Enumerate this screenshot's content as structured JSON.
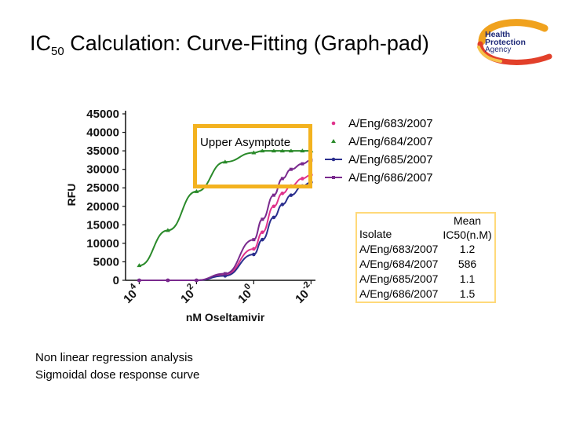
{
  "title": {
    "main": "IC",
    "sub": "50",
    "rest": " Calculation: Curve-Fitting (Graph-pad)"
  },
  "logo": {
    "line1": "Health",
    "line2": "Protection",
    "line3": "Agency",
    "icon": "hpa-swirl-logo",
    "colors": [
      "#f0a21e",
      "#e2402a",
      "#1f2a78"
    ]
  },
  "annotation": {
    "label": "Upper Asymptote",
    "color": "#f3b21f"
  },
  "chart_data": {
    "type": "line",
    "xlabel": "nM Oseltamivir",
    "ylabel": "RFU",
    "x_scale": "log",
    "x_reversed": true,
    "xlim": [
      30000,
      0.007
    ],
    "ylim": [
      0,
      45000
    ],
    "y_ticks": [
      "0",
      "5000",
      "10000",
      "15000",
      "20000",
      "25000",
      "30000",
      "35000",
      "40000",
      "45000"
    ],
    "x_ticks": [
      {
        "base": "10",
        "exp": "4",
        "value": 10000
      },
      {
        "base": "10",
        "exp": "2",
        "value": 100
      },
      {
        "base": "10",
        "exp": "0",
        "value": 1
      },
      {
        "base": "10",
        "exp": "-2",
        "value": 0.01
      }
    ],
    "x_points": [
      10000,
      1000,
      100,
      10,
      1,
      0.5,
      0.2,
      0.1,
      0.05,
      0.02,
      0.01
    ],
    "series": [
      {
        "name": "A/Eng/683/2007",
        "color": "#e0338c",
        "marker": "dot",
        "values": [
          0,
          0,
          0,
          1500,
          8500,
          13000,
          20000,
          23500,
          25500,
          27500,
          28500
        ]
      },
      {
        "name": "A/Eng/684/2007",
        "color": "#2a8a2a",
        "marker": "tri",
        "values": [
          4000,
          13500,
          24000,
          32000,
          34500,
          35000,
          35000,
          35000,
          35000,
          35000,
          35000
        ]
      },
      {
        "name": "A/Eng/685/2007",
        "color": "#2b2f8e",
        "marker": "dot",
        "values": [
          0,
          0,
          0,
          1200,
          7000,
          11000,
          17000,
          20500,
          23000,
          25500,
          26500
        ]
      },
      {
        "name": "A/Eng/686/2007",
        "color": "#7a2a8e",
        "marker": "square",
        "values": [
          0,
          0,
          0,
          1800,
          11000,
          16500,
          23000,
          27500,
          30000,
          31500,
          32500
        ]
      }
    ]
  },
  "table": {
    "headers": [
      "Isolate",
      "Mean IC50(n.M)"
    ],
    "header_line1": "Mean",
    "header_line2": "IC50(n.M)",
    "rows": [
      {
        "isolate": "A/Eng/683/2007",
        "ic50": "1.2"
      },
      {
        "isolate": "A/Eng/684/2007",
        "ic50": "586"
      },
      {
        "isolate": "A/Eng/685/2007",
        "ic50": "1.1"
      },
      {
        "isolate": "A/Eng/686/2007",
        "ic50": "1.5"
      }
    ]
  },
  "notes": {
    "line1": "Non linear regression analysis",
    "line2": "Sigmoidal dose response curve"
  }
}
